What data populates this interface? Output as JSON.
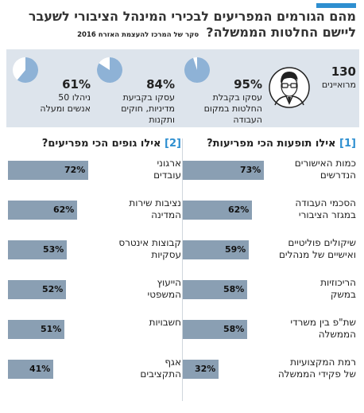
{
  "header": {
    "title_line1": "מהם הגורמים המפריעים לבכירי המינהל הציבורי לשעבר",
    "title_line2": "ליישם החלטות הממשלה?",
    "survey_note": "סקר של המרכז להעצמת האזרח 2016"
  },
  "respondents": {
    "count": "130",
    "label": "מרואיינים"
  },
  "stats": [
    {
      "pct": "95%",
      "value": 95,
      "desc1": "עסקו בקבלת",
      "desc2": "החלטות במקום",
      "desc3": "העבודה"
    },
    {
      "pct": "84%",
      "value": 84,
      "desc1": "עסקו בקביעת",
      "desc2": "מדיניות, חוקים",
      "desc3": "ותקנות"
    },
    {
      "pct": "61%",
      "value": 61,
      "desc1": "ניהלו 50",
      "desc2": "אנשים ומעלה",
      "desc3": ""
    }
  ],
  "colors": {
    "accent": "#2e8fd0",
    "bar": "#8a9fb3",
    "band": "#dde4ec",
    "pie_fill": "#8eb2d6"
  },
  "chart_data": [
    {
      "type": "bar",
      "title": "אילו תופעות הכי מפריעות?",
      "number": "1",
      "categories": [
        [
          "כמות האישורים",
          "הנדרשים"
        ],
        [
          "הסכמי העבודה",
          "במגזר הציבורי"
        ],
        [
          "שיקולים פוליטיים",
          "ואישיים של מנהלים"
        ],
        [
          "הריכוזיות",
          "במשק"
        ],
        [
          "שת\"פ בין משרדי",
          "הממשלה"
        ],
        [
          "רמת המקצועיות",
          "של פקידי הממשלה"
        ]
      ],
      "values": [
        73,
        62,
        59,
        58,
        58,
        32
      ],
      "labels": [
        "73%",
        "62%",
        "59%",
        "58%",
        "58%",
        "32%"
      ],
      "ylim": [
        0,
        100
      ]
    },
    {
      "type": "bar",
      "title": "אילו גופים הכי מפריעים?",
      "number": "2",
      "categories": [
        [
          "ארגוני",
          "עובדים"
        ],
        [
          "נציבות שירות",
          "המדינה"
        ],
        [
          "קבוצות אינטרס",
          "עסקיות"
        ],
        [
          "הייעוץ",
          "המשפטי"
        ],
        [
          "חשבויות",
          ""
        ],
        [
          "אגף",
          "התקציבים"
        ]
      ],
      "values": [
        72,
        62,
        53,
        52,
        51,
        41
      ],
      "labels": [
        "72%",
        "62%",
        "53%",
        "52%",
        "51%",
        "41%"
      ],
      "ylim": [
        0,
        100
      ]
    }
  ]
}
